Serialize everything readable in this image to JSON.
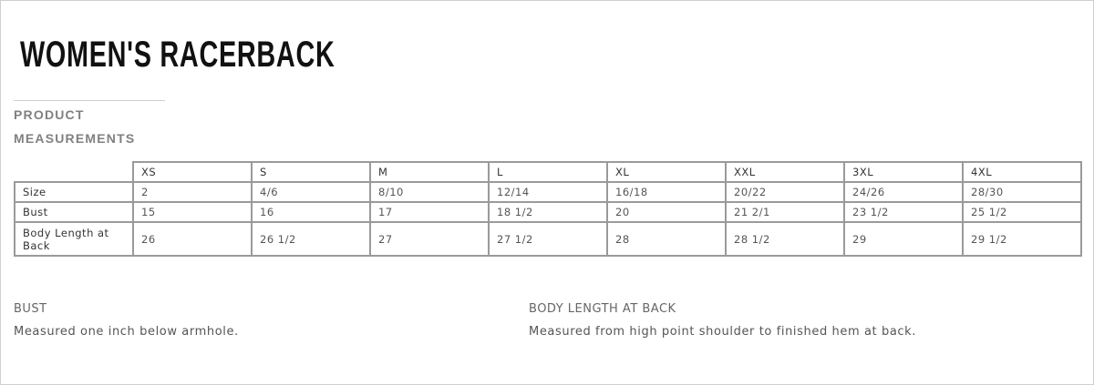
{
  "title": "WOMEN'S RACERBACK",
  "section_heading": [
    "PRODUCT",
    "MEASUREMENTS"
  ],
  "table": {
    "columns": [
      "XS",
      "S",
      "M",
      "L",
      "XL",
      "XXL",
      "3XL",
      "4XL"
    ],
    "rows": [
      {
        "label": "Size",
        "values": [
          "2",
          "4/6",
          "8/10",
          "12/14",
          "16/18",
          "20/22",
          "24/26",
          "28/30"
        ]
      },
      {
        "label": "Bust",
        "values": [
          "15",
          "16",
          "17",
          "18 1/2",
          "20",
          "21 2/1",
          "23 1/2",
          "25 1/2"
        ]
      },
      {
        "label": "Body Length at Back",
        "values": [
          "26",
          "26 1/2",
          "27",
          "27 1/2",
          "28",
          "28 1/2",
          "29",
          "29 1/2"
        ]
      }
    ]
  },
  "notes": [
    {
      "heading": "BUST",
      "text": "Measured one inch below armhole."
    },
    {
      "heading": "BODY LENGTH AT BACK",
      "text": "Measured from high point shoulder to finished hem at back."
    }
  ]
}
